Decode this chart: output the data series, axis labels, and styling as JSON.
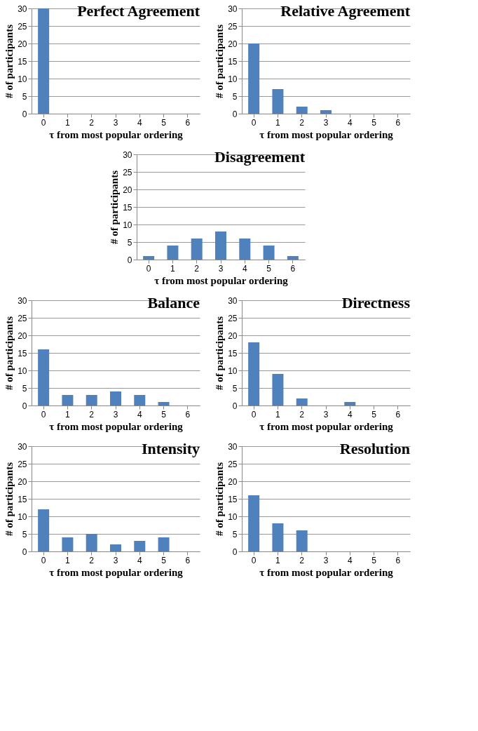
{
  "chart_data": [
    {
      "type": "bar",
      "title": "Perfect Agreement",
      "xlabel": "τ from most popular ordering",
      "ylabel": "# of participants",
      "categories": [
        "0",
        "1",
        "2",
        "3",
        "4",
        "5",
        "6"
      ],
      "values": [
        30,
        0,
        0,
        0,
        0,
        0,
        0
      ],
      "color": "#4f81bd",
      "ylim": [
        0,
        30
      ],
      "yticks": [
        0,
        5,
        10,
        15,
        20,
        25,
        30
      ],
      "grid": "y"
    },
    {
      "type": "bar",
      "title": "Relative Agreement",
      "xlabel": "τ from most popular ordering",
      "ylabel": "# of participants",
      "categories": [
        "0",
        "1",
        "2",
        "3",
        "4",
        "5",
        "6"
      ],
      "values": [
        20,
        7,
        2,
        1,
        0,
        0,
        0
      ],
      "color": "#4f81bd",
      "ylim": [
        0,
        30
      ],
      "yticks": [
        0,
        5,
        10,
        15,
        20,
        25,
        30
      ],
      "grid": "y"
    },
    {
      "type": "bar",
      "title": "Disagreement",
      "xlabel": "τ from most popular ordering",
      "ylabel": "# of participants",
      "categories": [
        "0",
        "1",
        "2",
        "3",
        "4",
        "5",
        "6"
      ],
      "values": [
        1,
        4,
        6,
        8,
        6,
        4,
        1
      ],
      "color": "#4f81bd",
      "ylim": [
        0,
        30
      ],
      "yticks": [
        0,
        5,
        10,
        15,
        20,
        25,
        30
      ],
      "grid": "y"
    },
    {
      "type": "bar",
      "title": "Balance",
      "xlabel": "τ from most popular ordering",
      "ylabel": "# of participants",
      "categories": [
        "0",
        "1",
        "2",
        "3",
        "4",
        "5",
        "6"
      ],
      "values": [
        16,
        3,
        3,
        4,
        3,
        1,
        0
      ],
      "color": "#4f81bd",
      "ylim": [
        0,
        30
      ],
      "yticks": [
        0,
        5,
        10,
        15,
        20,
        25,
        30
      ],
      "grid": "y"
    },
    {
      "type": "bar",
      "title": "Directness",
      "xlabel": "τ from most popular ordering",
      "ylabel": "# of participants",
      "categories": [
        "0",
        "1",
        "2",
        "3",
        "4",
        "5",
        "6"
      ],
      "values": [
        18,
        9,
        2,
        0,
        1,
        0,
        0
      ],
      "color": "#4f81bd",
      "ylim": [
        0,
        30
      ],
      "yticks": [
        0,
        5,
        10,
        15,
        20,
        25,
        30
      ],
      "grid": "y"
    },
    {
      "type": "bar",
      "title": "Intensity",
      "xlabel": "τ from most popular ordering",
      "ylabel": "# of participants",
      "categories": [
        "0",
        "1",
        "2",
        "3",
        "4",
        "5",
        "6"
      ],
      "values": [
        12,
        4,
        5,
        2,
        3,
        4,
        0
      ],
      "color": "#4f81bd",
      "ylim": [
        0,
        30
      ],
      "yticks": [
        0,
        5,
        10,
        15,
        20,
        25,
        30
      ],
      "grid": "y"
    },
    {
      "type": "bar",
      "title": "Resolution",
      "xlabel": "τ from most popular ordering",
      "ylabel": "# of participants",
      "categories": [
        "0",
        "1",
        "2",
        "3",
        "4",
        "5",
        "6"
      ],
      "values": [
        16,
        8,
        6,
        0,
        0,
        0,
        0
      ],
      "color": "#4f81bd",
      "ylim": [
        0,
        30
      ],
      "yticks": [
        0,
        5,
        10,
        15,
        20,
        25,
        30
      ],
      "grid": "y"
    }
  ]
}
